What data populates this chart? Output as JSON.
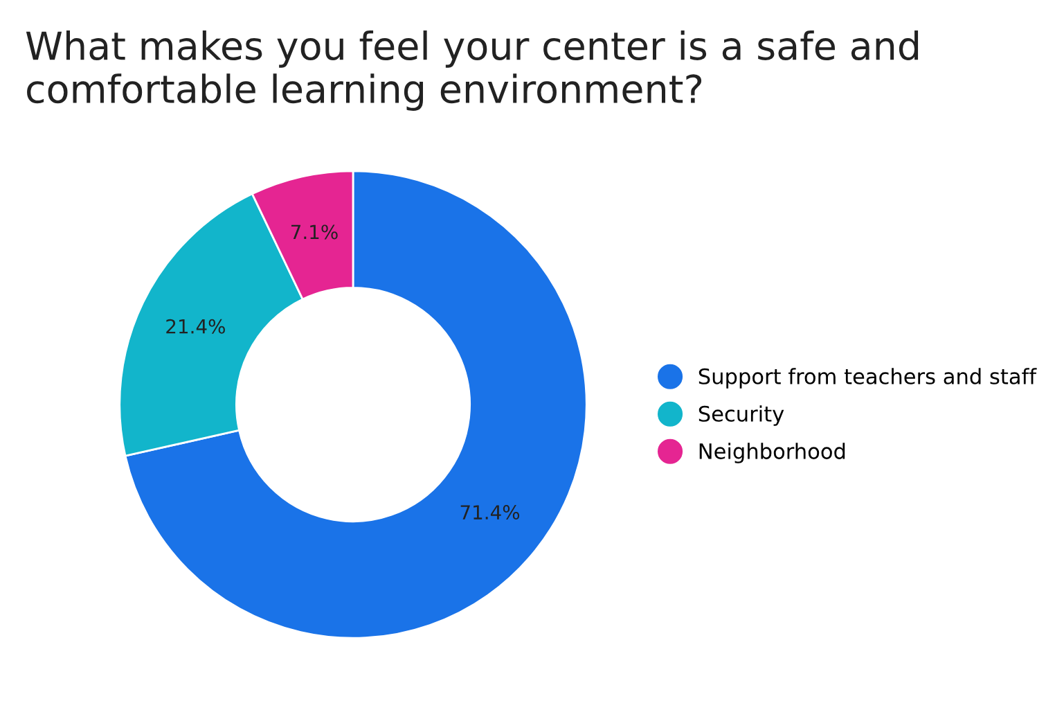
{
  "chart_data": {
    "type": "donut",
    "title": "What makes you feel your center is a safe and comfortable learning environment?",
    "categories": [
      "Support from teachers and staff",
      "Security",
      "Neighborhood"
    ],
    "values": [
      71.4,
      21.4,
      7.1
    ],
    "colors": [
      "#1a73e8",
      "#12b5cb",
      "#e52592"
    ],
    "value_labels": [
      "71.4%",
      "21.4%",
      "7.1%"
    ],
    "legend": "right"
  }
}
